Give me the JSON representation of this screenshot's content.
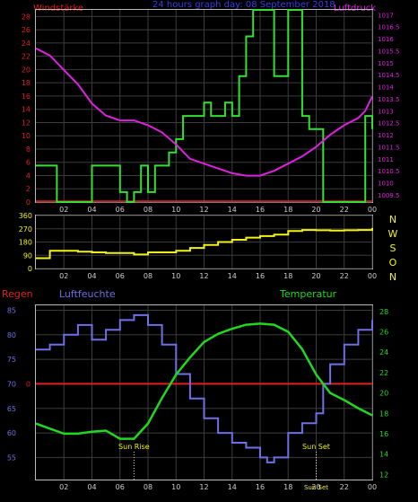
{
  "colors": {
    "background": "#000000",
    "frame": "#b9b9b9",
    "grid": "#3c3c3c",
    "wind_speed": "#33e033",
    "pressure": "#e020e0",
    "direction": "#f2f218",
    "humidity": "#6f6fe6",
    "temperature": "#20d820",
    "rain": "#e02020",
    "annotation": "#f2f218",
    "tick": "#cfcfcf"
  },
  "header": {
    "left_label": "Windstärke",
    "title": "24 hours graph day:  08 September 2018",
    "right_label": "Luftdruck"
  },
  "chart_data": [
    {
      "type": "line",
      "panel": "wind-pressure",
      "x_ticks": [
        "02",
        "04",
        "06",
        "08",
        "10",
        "12",
        "14",
        "16",
        "18",
        "20",
        "22",
        "00"
      ],
      "xlim": [
        0,
        24
      ],
      "left_axis": {
        "label": "Windstärke",
        "ticks": [
          0,
          2,
          4,
          6,
          8,
          10,
          12,
          14,
          16,
          18,
          20,
          22,
          24,
          26,
          28
        ],
        "ylim": [
          0,
          29
        ]
      },
      "right_axis": {
        "label": "Luftdruck",
        "ticks": [
          "1009.5",
          "1010",
          "1010.5",
          "1011",
          "1011.5",
          "1012",
          "1012.5",
          "1013",
          "1013.5",
          "1014",
          "1014.5",
          "1015",
          "1015.5",
          "1016",
          "1016.5",
          "1017"
        ],
        "ylim": [
          1009.2,
          1017.2
        ]
      },
      "series": [
        {
          "name": "Windstärke",
          "axis": "left",
          "step": true,
          "points": [
            [
              0,
              5.5
            ],
            [
              1.5,
              5.5
            ],
            [
              1.5,
              0
            ],
            [
              4,
              0
            ],
            [
              4,
              5.5
            ],
            [
              6,
              5.5
            ],
            [
              6,
              1.5
            ],
            [
              6.5,
              1.5
            ],
            [
              6.5,
              0
            ],
            [
              7,
              0
            ],
            [
              7,
              1.5
            ],
            [
              7.5,
              1.5
            ],
            [
              7.5,
              5.5
            ],
            [
              8,
              5.5
            ],
            [
              8,
              1.5
            ],
            [
              8.5,
              1.5
            ],
            [
              8.5,
              5.5
            ],
            [
              9.5,
              5.5
            ],
            [
              9.5,
              7.5
            ],
            [
              10,
              7.5
            ],
            [
              10,
              9.5
            ],
            [
              10.5,
              9.5
            ],
            [
              10.5,
              13
            ],
            [
              12,
              13
            ],
            [
              12,
              15
            ],
            [
              12.5,
              15
            ],
            [
              12.5,
              13
            ],
            [
              13.5,
              13
            ],
            [
              13.5,
              15
            ],
            [
              14,
              15
            ],
            [
              14,
              13
            ],
            [
              14.5,
              13
            ],
            [
              14.5,
              19
            ],
            [
              15,
              19
            ],
            [
              15,
              25
            ],
            [
              15.5,
              25
            ],
            [
              15.5,
              29
            ],
            [
              17,
              29
            ],
            [
              17,
              19
            ],
            [
              18,
              19
            ],
            [
              18,
              29
            ],
            [
              19,
              29
            ],
            [
              19,
              13
            ],
            [
              19.5,
              13
            ],
            [
              19.5,
              11
            ],
            [
              20.5,
              11
            ],
            [
              20.5,
              0
            ],
            [
              23.5,
              0
            ],
            [
              23.5,
              13
            ],
            [
              24,
              13
            ],
            [
              24,
              11
            ]
          ]
        },
        {
          "name": "Luftdruck",
          "axis": "right",
          "points": [
            [
              0,
              1015.6
            ],
            [
              1,
              1015.3
            ],
            [
              2,
              1014.7
            ],
            [
              3,
              1014.1
            ],
            [
              4,
              1013.3
            ],
            [
              5,
              1012.8
            ],
            [
              6,
              1012.6
            ],
            [
              7,
              1012.6
            ],
            [
              8,
              1012.4
            ],
            [
              9,
              1012.1
            ],
            [
              10,
              1011.6
            ],
            [
              11,
              1011.0
            ],
            [
              12,
              1010.8
            ],
            [
              13,
              1010.6
            ],
            [
              14,
              1010.4
            ],
            [
              15,
              1010.3
            ],
            [
              16,
              1010.3
            ],
            [
              17,
              1010.5
            ],
            [
              18,
              1010.8
            ],
            [
              19,
              1011.1
            ],
            [
              20,
              1011.5
            ],
            [
              21,
              1012.0
            ],
            [
              22,
              1012.4
            ],
            [
              23,
              1012.7
            ],
            [
              23.5,
              1013.0
            ],
            [
              24,
              1013.6
            ]
          ]
        }
      ]
    },
    {
      "type": "line",
      "panel": "wind-direction",
      "x_ticks": [
        "02",
        "04",
        "06",
        "08",
        "10",
        "12",
        "14",
        "16",
        "18",
        "20",
        "22",
        "00"
      ],
      "xlim": [
        0,
        24
      ],
      "y_ticks": [
        0,
        90,
        180,
        270,
        360
      ],
      "ylim": [
        0,
        360
      ],
      "compass_labels": [
        "N",
        "W",
        "S",
        "O",
        "N"
      ],
      "series": [
        {
          "name": "wind direction",
          "points": [
            [
              0,
              70
            ],
            [
              1,
              120
            ],
            [
              2,
              120
            ],
            [
              3,
              115
            ],
            [
              4,
              110
            ],
            [
              5,
              105
            ],
            [
              6,
              105
            ],
            [
              7,
              95
            ],
            [
              8,
              110
            ],
            [
              9,
              110
            ],
            [
              10,
              120
            ],
            [
              11,
              140
            ],
            [
              12,
              160
            ],
            [
              13,
              180
            ],
            [
              14,
              195
            ],
            [
              15,
              210
            ],
            [
              16,
              220
            ],
            [
              17,
              230
            ],
            [
              18,
              255
            ],
            [
              19,
              262
            ],
            [
              20,
              260
            ],
            [
              21,
              258
            ],
            [
              22,
              260
            ],
            [
              23,
              262
            ],
            [
              24,
              275
            ]
          ]
        }
      ]
    },
    {
      "type": "line",
      "panel": "rain-humidity-temperature",
      "labels": {
        "rain": "Regen",
        "humidity": "Luftfeuchte",
        "temperature": "Temperatur"
      },
      "x_ticks": [
        "02",
        "04",
        "06",
        "08",
        "10",
        "12",
        "14",
        "16",
        "18",
        "20",
        "22",
        "00"
      ],
      "xlim": [
        0,
        24
      ],
      "left_axis": {
        "ticks": [
          55,
          60,
          65,
          70,
          75,
          80,
          85
        ],
        "ylim": [
          50.5,
          86
        ]
      },
      "rain_axis": {
        "tick": "0"
      },
      "right_axis": {
        "ticks": [
          12,
          14,
          16,
          18,
          20,
          22,
          24,
          26,
          28
        ],
        "ylim": [
          11.5,
          28.6
        ]
      },
      "annotations": [
        {
          "text": "Sun Rise",
          "x": 7.0
        },
        {
          "text": "Sun Set",
          "x": 20.0
        }
      ],
      "bottom_marker": {
        "text": "Sun Set",
        "x": 20.0
      },
      "series": [
        {
          "name": "Luftfeuchte",
          "axis": "left",
          "step": true,
          "points": [
            [
              0,
              77
            ],
            [
              1,
              78
            ],
            [
              2,
              80
            ],
            [
              3,
              82
            ],
            [
              4,
              79
            ],
            [
              5,
              81
            ],
            [
              6,
              83
            ],
            [
              7,
              84
            ],
            [
              8,
              82
            ],
            [
              9,
              78
            ],
            [
              10,
              72
            ],
            [
              11,
              67
            ],
            [
              12,
              63
            ],
            [
              13,
              60
            ],
            [
              14,
              58
            ],
            [
              15,
              57
            ],
            [
              16,
              55
            ],
            [
              16.5,
              54
            ],
            [
              17,
              55
            ],
            [
              18,
              60
            ],
            [
              19,
              62
            ],
            [
              20,
              64
            ],
            [
              20.5,
              70
            ],
            [
              21,
              74
            ],
            [
              22,
              78
            ],
            [
              23,
              81
            ],
            [
              24,
              83
            ]
          ]
        },
        {
          "name": "Temperatur",
          "axis": "right",
          "points": [
            [
              0,
              17.0
            ],
            [
              1,
              16.5
            ],
            [
              2,
              16.0
            ],
            [
              3,
              16.0
            ],
            [
              4,
              16.2
            ],
            [
              5,
              16.3
            ],
            [
              6,
              15.5
            ],
            [
              7,
              15.5
            ],
            [
              8,
              17.0
            ],
            [
              9,
              19.5
            ],
            [
              10,
              21.8
            ],
            [
              11,
              23.5
            ],
            [
              12,
              25.0
            ],
            [
              13,
              25.8
            ],
            [
              14,
              26.3
            ],
            [
              15,
              26.7
            ],
            [
              16,
              26.8
            ],
            [
              17,
              26.7
            ],
            [
              18,
              26.0
            ],
            [
              19,
              24.3
            ],
            [
              20,
              21.8
            ],
            [
              21,
              20.0
            ],
            [
              22,
              19.3
            ],
            [
              23,
              18.5
            ],
            [
              24,
              17.8
            ]
          ]
        },
        {
          "name": "Regen",
          "axis": "rain",
          "points": [
            [
              0,
              0
            ],
            [
              24,
              0
            ]
          ]
        }
      ]
    }
  ]
}
